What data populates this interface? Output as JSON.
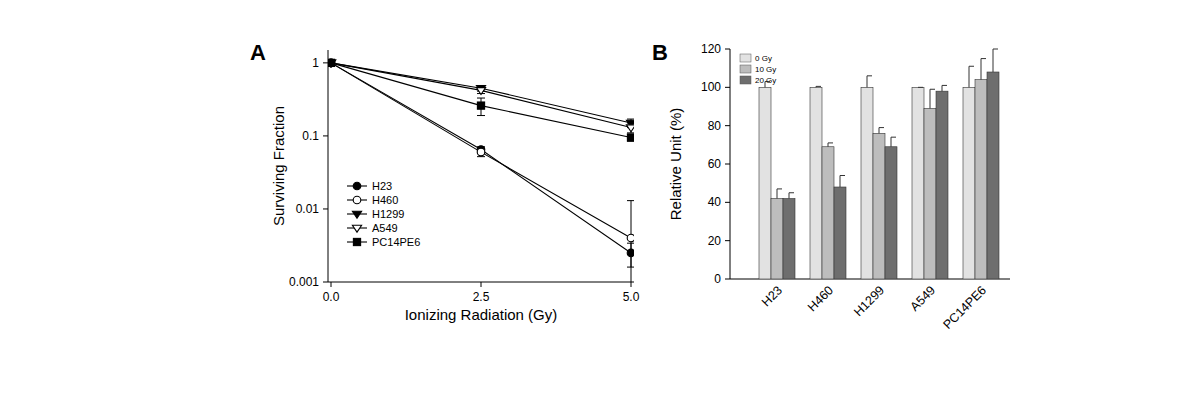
{
  "chart_data": [
    {
      "title": "A",
      "type": "line",
      "x_label": "Ionizing Radiation (Gy)",
      "y_label": "Surviving Fraction",
      "x": [
        0,
        2.5,
        5
      ],
      "xlim": [
        -0.05,
        5.05
      ],
      "xticks": [
        {
          "value": 0,
          "label": "0.0"
        },
        2.5,
        {
          "value": 5,
          "label": "5.0"
        }
      ],
      "ylim": [
        0.001,
        1.5
      ],
      "yticks": [
        0.001,
        0.01,
        0.1,
        1
      ],
      "log": "y",
      "legend": "lower left",
      "series": [
        {
          "name": "H23",
          "color": "#000000",
          "marker": "circle",
          "values": [
            1,
            0.065,
            0.0025
          ],
          "errors": [
            0,
            0.006,
            0.0009
          ]
        },
        {
          "name": "H460",
          "color": "#000000",
          "marker": "circle-open",
          "values": [
            1,
            0.06,
            0.004
          ],
          "errors": [
            0,
            0.008,
            0.009
          ]
        },
        {
          "name": "H1299",
          "color": "#000000",
          "marker": "triangle-down",
          "values": [
            1,
            0.45,
            0.15
          ],
          "errors": [
            0,
            0.04,
            0.02
          ]
        },
        {
          "name": "A549",
          "color": "#000000",
          "marker": "triangle-down-open",
          "values": [
            1,
            0.42,
            0.13
          ],
          "errors": [
            0,
            0.04,
            0.02
          ]
        },
        {
          "name": "PC14PE6",
          "color": "#000000",
          "marker": "square",
          "values": [
            1,
            0.26,
            0.095
          ],
          "errors": [
            0,
            0.07,
            0.01
          ]
        }
      ]
    },
    {
      "title": "B",
      "type": "bar",
      "y_label": "Relative Unit (%)",
      "categories": [
        "H23",
        "H460",
        "H1299",
        "A549",
        "PC14PE6"
      ],
      "ylim": [
        0,
        120
      ],
      "yticks": [
        0,
        20,
        40,
        60,
        80,
        100,
        120
      ],
      "legend": "upper left",
      "series": [
        {
          "name": "0 Gy",
          "color": "#e2e2e2",
          "values": [
            100,
            100,
            100,
            100,
            100
          ],
          "errors": [
            3,
            0.5,
            6,
            0,
            11
          ]
        },
        {
          "name": "10 Gy",
          "color": "#bdbdbd",
          "values": [
            42,
            69,
            76,
            89,
            104
          ],
          "errors": [
            5,
            2,
            3,
            10,
            11
          ]
        },
        {
          "name": "20 Gy",
          "color": "#6e6e6e",
          "values": [
            42,
            48,
            69,
            98,
            108
          ],
          "errors": [
            3,
            6,
            5,
            3,
            12
          ]
        }
      ]
    }
  ]
}
